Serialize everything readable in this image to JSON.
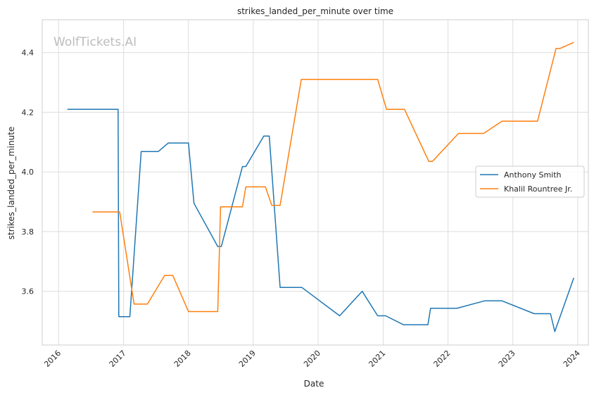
{
  "watermark": "WolfTickets.AI",
  "chart_data": {
    "type": "line",
    "title": "strikes_landed_per_minute over time",
    "xlabel": "Date",
    "ylabel": "strikes_landed_per_minute",
    "xlim": [
      "2015-10-01",
      "2024-03-01"
    ],
    "ylim": [
      3.42,
      4.51
    ],
    "x_ticks": [
      "2016-01-01",
      "2017-01-01",
      "2018-01-01",
      "2019-01-01",
      "2020-01-01",
      "2021-01-01",
      "2022-01-01",
      "2023-01-01",
      "2024-01-01"
    ],
    "x_tick_labels": [
      "2016",
      "2017",
      "2018",
      "2019",
      "2020",
      "2021",
      "2022",
      "2023",
      "2024"
    ],
    "y_ticks": [
      3.6,
      3.8,
      4.0,
      4.2,
      4.4
    ],
    "y_tick_labels": [
      "3.6",
      "3.8",
      "4.0",
      "4.2",
      "4.4"
    ],
    "grid": true,
    "legend_position": "center-right",
    "series": [
      {
        "name": "Anthony Smith",
        "color": "#1f77b4",
        "points": [
          [
            "2016-02-20",
            4.21
          ],
          [
            "2016-12-01",
            4.21
          ],
          [
            "2016-12-05",
            3.515
          ],
          [
            "2017-02-05",
            3.515
          ],
          [
            "2017-04-10",
            4.068
          ],
          [
            "2017-07-15",
            4.068
          ],
          [
            "2017-09-10",
            4.097
          ],
          [
            "2018-01-01",
            4.097
          ],
          [
            "2018-02-01",
            3.895
          ],
          [
            "2018-06-15",
            3.75
          ],
          [
            "2018-07-05",
            3.75
          ],
          [
            "2018-11-01",
            4.018
          ],
          [
            "2018-11-20",
            4.018
          ],
          [
            "2019-03-01",
            4.12
          ],
          [
            "2019-04-01",
            4.12
          ],
          [
            "2019-06-01",
            3.613
          ],
          [
            "2019-10-01",
            3.613
          ],
          [
            "2020-05-01",
            3.518
          ],
          [
            "2020-09-05",
            3.6
          ],
          [
            "2020-12-01",
            3.518
          ],
          [
            "2021-01-15",
            3.518
          ],
          [
            "2021-04-25",
            3.488
          ],
          [
            "2021-09-10",
            3.488
          ],
          [
            "2021-09-25",
            3.543
          ],
          [
            "2022-02-20",
            3.543
          ],
          [
            "2022-07-25",
            3.568
          ],
          [
            "2022-11-01",
            3.568
          ],
          [
            "2023-05-01",
            3.525
          ],
          [
            "2023-08-01",
            3.525
          ],
          [
            "2023-08-25",
            3.465
          ],
          [
            "2023-12-10",
            3.645
          ]
        ]
      },
      {
        "name": "Khalil Rountree Jr.",
        "color": "#ff7f0e",
        "points": [
          [
            "2016-07-10",
            3.866
          ],
          [
            "2016-12-10",
            3.866
          ],
          [
            "2017-03-01",
            3.557
          ],
          [
            "2017-05-15",
            3.557
          ],
          [
            "2017-08-20",
            3.653
          ],
          [
            "2017-10-05",
            3.653
          ],
          [
            "2018-01-01",
            3.532
          ],
          [
            "2018-06-15",
            3.532
          ],
          [
            "2018-07-01",
            3.883
          ],
          [
            "2018-11-01",
            3.883
          ],
          [
            "2018-11-20",
            3.95
          ],
          [
            "2019-03-10",
            3.95
          ],
          [
            "2019-04-15",
            3.888
          ],
          [
            "2019-06-01",
            3.888
          ],
          [
            "2019-09-28",
            4.31
          ],
          [
            "2020-12-01",
            4.31
          ],
          [
            "2021-01-20",
            4.21
          ],
          [
            "2021-05-01",
            4.21
          ],
          [
            "2021-09-15",
            4.035
          ],
          [
            "2021-10-05",
            4.035
          ],
          [
            "2022-03-01",
            4.129
          ],
          [
            "2022-07-20",
            4.129
          ],
          [
            "2022-11-01",
            4.17
          ],
          [
            "2023-05-20",
            4.17
          ],
          [
            "2023-09-01",
            4.414
          ],
          [
            "2023-09-25",
            4.414
          ],
          [
            "2023-12-10",
            4.434
          ]
        ]
      }
    ]
  }
}
